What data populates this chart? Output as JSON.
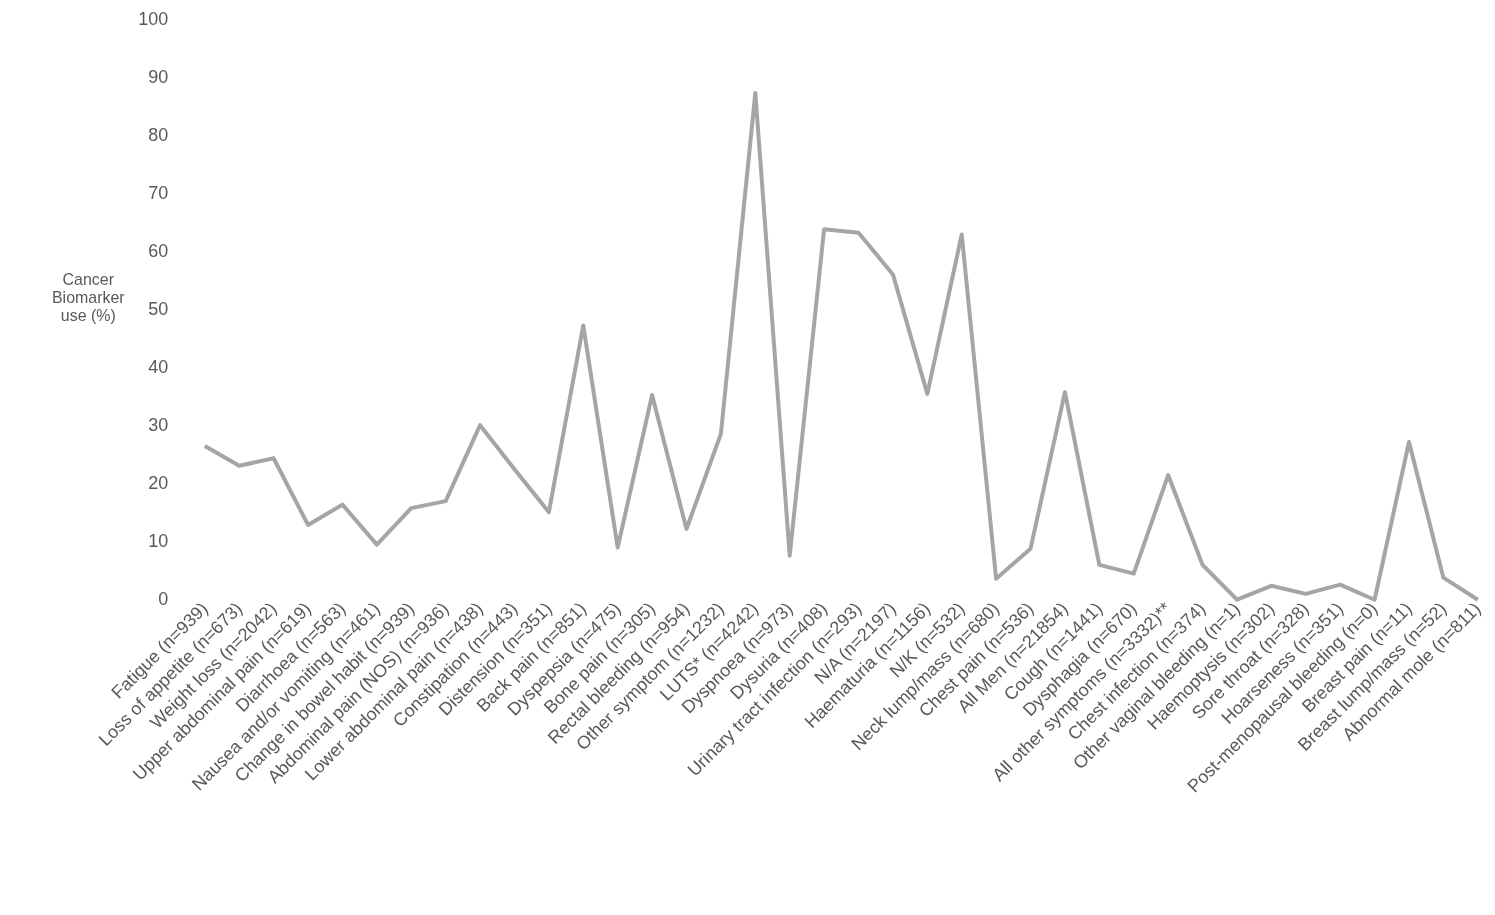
{
  "chart_data": {
    "type": "line",
    "ylabel": "Cancer\nBiomarker\nuse (%)",
    "categories": [
      "Fatigue (n=939)",
      "Loss of appetite (n=673)",
      "Weight loss (n=2042)",
      "Upper abdominal pain (n=619)",
      "Diarrhoea (n=563)",
      "Nausea and/or vomiting (n=461)",
      "Change in bowel habit (n=939)",
      "Abdominal pain (NOS) (n=936)",
      "Lower abdominal pain (n=438)",
      "Constipation (n=443)",
      "Distension (n=351)",
      "Back pain (n=851)",
      "Dyspepsia (n=475)",
      "Bone pain (n=305)",
      "Rectal bleeding (n=954)",
      "Other symptom (n=1232)",
      "LUTS* (n=4242)",
      "Dyspnoea (n=973)",
      "Dysuria (n=408)",
      "Urinary tract infection (n=293)",
      "N/A (n=2197)",
      "Haematuria (n=1156)",
      "N/K (n=532)",
      "Neck lump/mass (n=680)",
      "Chest pain (n=536)",
      "All Men (n=21854)",
      "Cough (n=1441)",
      "Dysphagia (n=670)",
      "All other symptoms (n=3332)**",
      "Chest infection (n=374)",
      "Other vaginal bleeding (n=1)",
      "Haemoptysis (n=302)",
      "Sore throat (n=328)",
      "Hoarseness (n=351)",
      "Post-menopausal bleeding (n=0)",
      "Breast pain (n=11)",
      "Breast lump/mass (n=52)",
      "Abnormal mole (n=811)"
    ],
    "series": [
      {
        "color": "#a5a5a5",
        "values": [
          26.5,
          23.1,
          24.4,
          12.9,
          16.4,
          9.5,
          15.8,
          17.0,
          30.1,
          22.5,
          15.1,
          47.3,
          9.0,
          35.3,
          12.2,
          28.6,
          87.4,
          7.6,
          63.9,
          63.3,
          56.1,
          35.5,
          63.0,
          3.6,
          8.8,
          35.8,
          6.0,
          4.5,
          21.5,
          6.0,
          0,
          2.4,
          1.0,
          2.6,
          0,
          27.2,
          3.8,
          0
        ]
      }
    ],
    "ylim": [
      0,
      100
    ],
    "yticks": [
      0,
      10,
      20,
      30,
      40,
      50,
      60,
      70,
      80,
      90,
      100
    ],
    "grid": false,
    "marker": "none",
    "line_style": "solid"
  }
}
